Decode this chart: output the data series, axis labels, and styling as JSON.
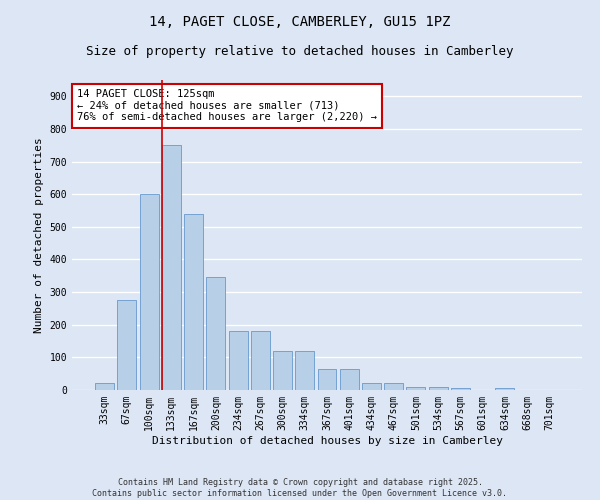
{
  "title_line1": "14, PAGET CLOSE, CAMBERLEY, GU15 1PZ",
  "title_line2": "Size of property relative to detached houses in Camberley",
  "xlabel": "Distribution of detached houses by size in Camberley",
  "ylabel": "Number of detached properties",
  "categories": [
    "33sqm",
    "67sqm",
    "100sqm",
    "133sqm",
    "167sqm",
    "200sqm",
    "234sqm",
    "267sqm",
    "300sqm",
    "334sqm",
    "367sqm",
    "401sqm",
    "434sqm",
    "467sqm",
    "501sqm",
    "534sqm",
    "567sqm",
    "601sqm",
    "634sqm",
    "668sqm",
    "701sqm"
  ],
  "values": [
    20,
    275,
    600,
    750,
    540,
    345,
    180,
    180,
    120,
    120,
    65,
    65,
    20,
    20,
    10,
    10,
    5,
    0,
    5,
    0,
    0
  ],
  "bar_color": "#b8cfe8",
  "bar_edge_color": "#6699cc",
  "background_color": "#dce6f5",
  "grid_color": "#ffffff",
  "vline_color": "#cc0000",
  "vline_index": 2.575,
  "annotation_text": "14 PAGET CLOSE: 125sqm\n← 24% of detached houses are smaller (713)\n76% of semi-detached houses are larger (2,220) →",
  "annotation_box_color": "#ffffff",
  "annotation_box_edge": "#cc0000",
  "ylim": [
    0,
    950
  ],
  "yticks": [
    0,
    100,
    200,
    300,
    400,
    500,
    600,
    700,
    800,
    900
  ],
  "footnote": "Contains HM Land Registry data © Crown copyright and database right 2025.\nContains public sector information licensed under the Open Government Licence v3.0.",
  "title_fontsize": 10,
  "subtitle_fontsize": 9,
  "axis_label_fontsize": 8,
  "tick_fontsize": 7,
  "annotation_fontsize": 7.5
}
